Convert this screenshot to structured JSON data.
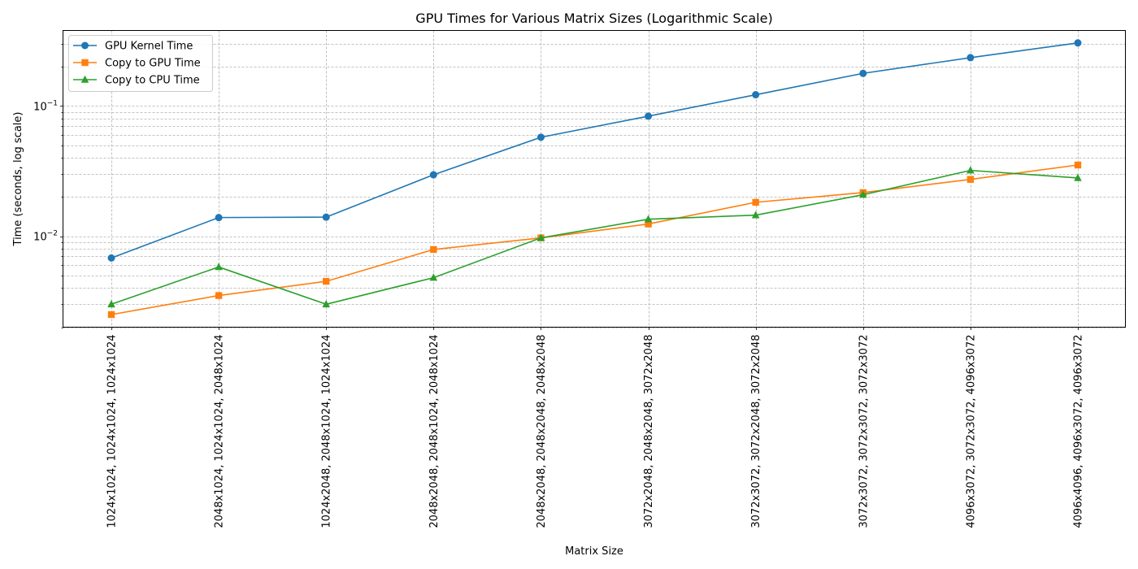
{
  "chart_data": {
    "type": "line",
    "title": "GPU Times for Various Matrix Sizes (Logarithmic Scale)",
    "xlabel": "Matrix Size",
    "ylabel": "Time (seconds, log scale)",
    "yscale": "log",
    "ylim": [
      0.002,
      0.38
    ],
    "grid": true,
    "legend_position": "upper-left",
    "y_ticks": [
      {
        "value": 0.01,
        "base": "10",
        "exp": "−2"
      },
      {
        "value": 0.1,
        "base": "10",
        "exp": "−1"
      }
    ],
    "categories": [
      "1024x1024, 1024x1024, 1024x1024",
      "2048x1024, 1024x1024, 2048x1024",
      "1024x2048, 2048x1024, 1024x1024",
      "2048x2048, 2048x1024, 2048x1024",
      "2048x2048, 2048x2048, 2048x2048",
      "3072x2048, 2048x2048, 3072x2048",
      "3072x3072, 3072x2048, 3072x2048",
      "3072x3072, 3072x3072, 3072x3072",
      "4096x3072, 3072x3072, 4096x3072",
      "4096x4096, 4096x3072, 4096x3072"
    ],
    "series": [
      {
        "name": "GPU Kernel Time",
        "color": "#1f77b4",
        "marker": "circle",
        "values": [
          0.0068,
          0.0139,
          0.014,
          0.0296,
          0.0575,
          0.0835,
          0.122,
          0.178,
          0.235,
          0.305
        ]
      },
      {
        "name": "Copy to GPU Time",
        "color": "#ff7f0e",
        "marker": "square",
        "values": [
          0.0025,
          0.0035,
          0.0045,
          0.0079,
          0.0097,
          0.0124,
          0.0182,
          0.0216,
          0.0273,
          0.0352
        ]
      },
      {
        "name": "Copy to CPU Time",
        "color": "#2ca02c",
        "marker": "triangle",
        "values": [
          0.003,
          0.0058,
          0.003,
          0.0048,
          0.0097,
          0.0135,
          0.0145,
          0.0208,
          0.032,
          0.028
        ]
      }
    ]
  }
}
